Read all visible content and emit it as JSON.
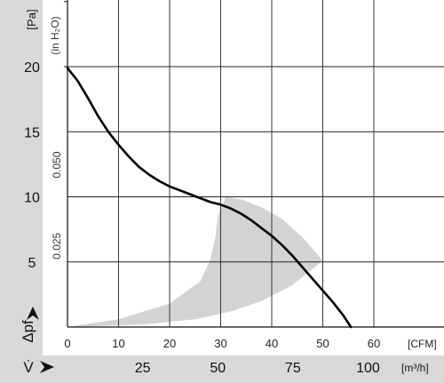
{
  "chart_data": {
    "type": "line",
    "title": "",
    "units": {
      "pressure_pa": "[Pa]",
      "pressure_inh2o": "(in H₂O)",
      "flow_cfm": "[CFM]",
      "flow_m3h": "[m³/h]"
    },
    "ylabel": "Δpf",
    "x2label": "V̇",
    "xlim_cfm": [
      0,
      70
    ],
    "ylim_pa": [
      0,
      25
    ],
    "grid": true,
    "y_ticks_pa": [
      "5",
      "10",
      "15",
      "20"
    ],
    "y2_ticks_inh2o": [
      "0.025",
      "0.050"
    ],
    "x_ticks_cfm": [
      "0",
      "10",
      "20",
      "30",
      "40",
      "50",
      "60"
    ],
    "x_ticks_m3h": [
      "25",
      "50",
      "75",
      "100"
    ],
    "series": [
      {
        "x_cfm": [
          0,
          2,
          4,
          6,
          8,
          10,
          12,
          14,
          16,
          18,
          20,
          22,
          24,
          26,
          28,
          30,
          32,
          34,
          36,
          38,
          40,
          42,
          44,
          46,
          48,
          50,
          52,
          54,
          55.5
        ],
        "y_pa": [
          19.9,
          18.9,
          17.6,
          16.2,
          15.0,
          14.0,
          13.1,
          12.3,
          11.7,
          11.2,
          10.8,
          10.5,
          10.2,
          9.9,
          9.6,
          9.4,
          9.1,
          8.7,
          8.2,
          7.6,
          7.0,
          6.3,
          5.5,
          4.6,
          3.7,
          2.8,
          1.9,
          0.9,
          0.0
        ]
      }
    ],
    "shaded_region": {
      "upper": {
        "x_cfm": [
          0,
          10,
          20,
          26,
          28,
          29,
          29.5,
          31,
          34,
          38,
          42,
          46,
          50
        ],
        "y_pa": [
          0,
          0.6,
          1.8,
          3.5,
          5.2,
          7.0,
          8.6,
          10.0,
          9.8,
          9.2,
          8.3,
          6.9,
          5.1
        ]
      },
      "lower": {
        "x_cfm": [
          0,
          15,
          25,
          32,
          38,
          44,
          50
        ],
        "y_pa": [
          0,
          0.2,
          0.6,
          1.2,
          2.0,
          3.2,
          5.1
        ]
      }
    }
  }
}
